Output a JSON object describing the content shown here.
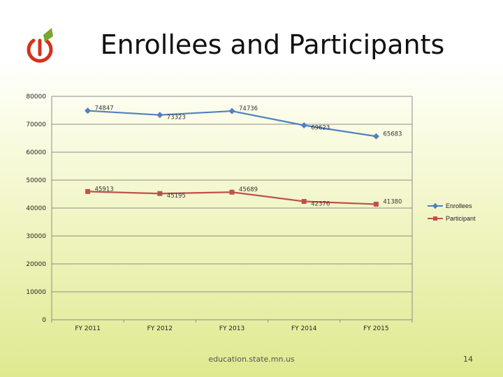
{
  "slide": {
    "title": "Enrollees and Participants",
    "footer_url": "education.state.mn.us",
    "page_number": "14"
  },
  "colors": {
    "enrollees": "#4f81bd",
    "participant": "#c0504d",
    "logo_red": "#d2321e",
    "logo_green": "#7aa52c"
  },
  "chart_data": {
    "type": "line",
    "categories": [
      "FY 2011",
      "FY 2012",
      "FY 2013",
      "FY 2014",
      "FY 2015"
    ],
    "series": [
      {
        "name": "Enrollees",
        "values": [
          74847,
          73323,
          74736,
          69623,
          65683
        ],
        "labels": [
          "74847",
          "73323",
          "74736",
          "69623",
          "65683"
        ]
      },
      {
        "name": "Participant",
        "values": [
          45913,
          45195,
          45689,
          42376,
          41380
        ],
        "labels": [
          "45913",
          "45195",
          "45689",
          "42376",
          "41380"
        ]
      }
    ],
    "yticks": [
      "80000",
      "70000",
      "60000",
      "50000",
      "40000",
      "30000",
      "20000",
      "10000",
      "0"
    ],
    "ylim": [
      0,
      80000
    ],
    "grid": true,
    "legend": "right"
  }
}
